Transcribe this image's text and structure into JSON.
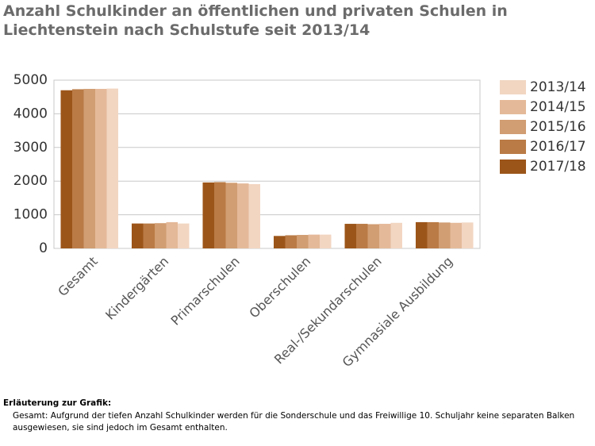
{
  "chart_data": {
    "type": "bar",
    "title": "Anzahl Schulkinder an öffentlichen und privaten Schulen in Liechtenstein nach Schulstufe seit 2013/14",
    "categories": [
      "Gesamt",
      "Kindergärten",
      "Primarschulen",
      "Oberschulen",
      "Real-/Sekundarschulen",
      "Gymnasiale Ausbildung"
    ],
    "series": [
      {
        "name": "2013/14",
        "color": "#f2d6c2",
        "values": [
          4750,
          740,
          1910,
          410,
          760,
          770
        ]
      },
      {
        "name": "2014/15",
        "color": "#e4b999",
        "values": [
          4740,
          780,
          1930,
          410,
          730,
          760
        ]
      },
      {
        "name": "2015/16",
        "color": "#d19d72",
        "values": [
          4740,
          750,
          1950,
          400,
          720,
          770
        ]
      },
      {
        "name": "2016/17",
        "color": "#ba7b46",
        "values": [
          4730,
          740,
          1970,
          390,
          730,
          780
        ]
      },
      {
        "name": "2017/18",
        "color": "#9c5519",
        "values": [
          4700,
          740,
          1960,
          370,
          730,
          780
        ]
      }
    ],
    "ylim": [
      0,
      5000
    ],
    "yticks": [
      0,
      1000,
      2000,
      3000,
      4000,
      5000
    ],
    "grid": true,
    "legend": "right",
    "note": {
      "heading": "Erläuterung zur Grafik:",
      "text": "Gesamt: Aufgrund der tiefen Anzahl Schulkinder werden für die Sonderschule und das Freiwillige 10. Schuljahr keine separaten Balken ausgewiesen, sie sind jedoch im Gesamt enthalten."
    }
  }
}
